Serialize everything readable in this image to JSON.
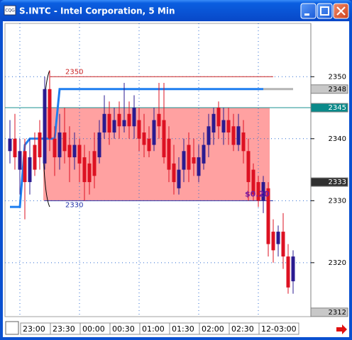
{
  "window": {
    "title": "S.INTC - Intel Corporation, 5 Min"
  },
  "chart_data": {
    "type": "candlestick",
    "categories": [
      null,
      null,
      "23:00",
      null,
      null,
      null,
      null,
      null,
      "23:30",
      null,
      null,
      null,
      null,
      null,
      "00:00",
      null,
      null,
      null,
      null,
      null,
      "00:30",
      null,
      null,
      null,
      null,
      null,
      "01:00",
      null,
      null,
      null,
      null,
      null,
      "01:30",
      null,
      null,
      null,
      null,
      null,
      "02:00",
      null,
      null,
      null,
      null,
      null,
      "02:30",
      null,
      null,
      null,
      null,
      null,
      "12-03:00",
      null,
      null,
      null,
      null,
      null,
      null,
      null
    ],
    "open": [
      2338,
      2340,
      2335,
      2338,
      2333,
      2339,
      2341,
      2336,
      2348,
      2340,
      2337,
      2341,
      2339,
      2337,
      2339,
      2337,
      2336,
      2338,
      2337,
      2341,
      2344,
      2341,
      2344,
      2342,
      2344,
      2342,
      2343,
      2341,
      2340,
      2339,
      2344,
      2343,
      2340,
      2336,
      2332,
      2335,
      2339,
      2337,
      2334,
      2336,
      2339,
      2341,
      2345,
      2341,
      2343,
      2342,
      2339,
      2341,
      2338,
      2335,
      2333,
      2330,
      2332,
      2325,
      2323,
      2325,
      2321,
      2317
    ],
    "high": [
      2343,
      2344,
      2340,
      2340,
      2340,
      2341,
      2343,
      2350,
      2351,
      2342,
      2344,
      2345,
      2342,
      2341,
      2340,
      2339,
      2338,
      2341,
      2343,
      2347,
      2346,
      2345,
      2346,
      2349,
      2346,
      2347,
      2345,
      2344,
      2342,
      2345,
      2349,
      2349,
      2342,
      2339,
      2337,
      2340,
      2341,
      2340,
      2339,
      2341,
      2344,
      2345,
      2346,
      2345,
      2345,
      2344,
      2344,
      2343,
      2340,
      2336,
      2334,
      2334,
      2333,
      2327,
      2326,
      2328,
      2323,
      2322
    ],
    "low": [
      2336,
      2335,
      2331,
      2327,
      2331,
      2334,
      2335,
      2335,
      2338,
      2334,
      2335,
      2336,
      2333,
      2335,
      2333,
      2330,
      2331,
      2332,
      2336,
      2340,
      2339,
      2340,
      2340,
      2341,
      2340,
      2340,
      2338,
      2337,
      2337,
      2338,
      2340,
      2336,
      2333,
      2331,
      2331,
      2333,
      2333,
      2334,
      2333,
      2335,
      2337,
      2339,
      2340,
      2339,
      2339,
      2338,
      2338,
      2336,
      2330,
      2330,
      2329,
      2328,
      2321,
      2320,
      2321,
      2319,
      2315,
      2315
    ],
    "close": [
      2340,
      2337,
      2338,
      2333,
      2337,
      2335,
      2337,
      2348,
      2340,
      2337,
      2341,
      2338,
      2337,
      2339,
      2336,
      2333,
      2333,
      2334,
      2341,
      2344,
      2341,
      2343,
      2342,
      2343,
      2342,
      2345,
      2340,
      2339,
      2338,
      2343,
      2342,
      2337,
      2335,
      2333,
      2335,
      2338,
      2335,
      2336,
      2337,
      2339,
      2342,
      2344,
      2342,
      2343,
      2341,
      2339,
      2342,
      2338,
      2333,
      2331,
      2330,
      2333,
      2323,
      2322,
      2325,
      2321,
      2316,
      2321
    ],
    "up_color": "#2a1a90",
    "down_color": "#dd1122",
    "ylim": [
      2311.3,
      2358.6
    ],
    "yticks": [
      2320,
      2330,
      2340,
      2350
    ],
    "grid": true,
    "price_markers": [
      2348,
      2345,
      2333,
      2312
    ],
    "marker_colors": [
      "#c8c8c8",
      "#0a8a8a",
      "#303030",
      "#c8c8c8"
    ],
    "marker_text_colors": [
      "#000000",
      "#ffffff",
      "#ffffff",
      "#000000"
    ],
    "levels": [
      {
        "value": 2350,
        "color": "#cc2222"
      },
      {
        "value": 2330,
        "color": "#2233aa"
      },
      {
        "value": 2345,
        "color": "#1a9090"
      }
    ],
    "zone": {
      "from": 2330,
      "to": 2345,
      "color": "#ff9090"
    },
    "step_line": {
      "color": "#1e7ef0",
      "values": [
        2329,
        2329,
        2329,
        2339,
        2340,
        2340,
        2340,
        2340,
        2340,
        2340,
        2348,
        2348,
        2348,
        2348,
        2348,
        2348,
        2348,
        2348,
        2348,
        2348,
        2348,
        2348,
        2348,
        2348,
        2348,
        2348,
        2348,
        2348,
        2348,
        2348,
        2348,
        2348,
        2348,
        2348,
        2348,
        2348,
        2348,
        2348,
        2348,
        2348,
        2348,
        2348,
        2348,
        2348,
        2348,
        2348,
        2348,
        2348,
        2348,
        2348,
        2348,
        2348,
        null,
        null,
        null,
        null,
        null,
        null
      ]
    },
    "projection": {
      "color": "#b4b4b4",
      "values": [
        null,
        null,
        null,
        null,
        null,
        null,
        null,
        null,
        null,
        null,
        null,
        null,
        null,
        null,
        null,
        null,
        null,
        null,
        null,
        null,
        null,
        null,
        null,
        null,
        null,
        null,
        null,
        null,
        null,
        null,
        null,
        null,
        null,
        null,
        null,
        null,
        null,
        null,
        null,
        null,
        null,
        null,
        null,
        null,
        null,
        null,
        null,
        null,
        null,
        null,
        null,
        2348,
        2348,
        2348,
        2348,
        2348,
        2348,
        2348
      ]
    },
    "annotation": "$0.20"
  }
}
